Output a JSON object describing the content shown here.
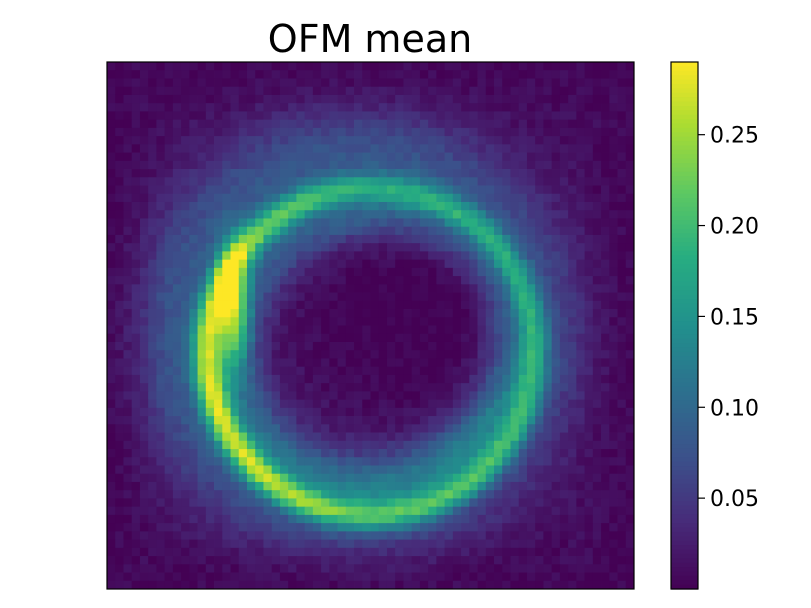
{
  "chart_data": {
    "type": "heatmap",
    "title": "OFM mean",
    "xlabel": "",
    "ylabel": "",
    "grid": false,
    "x_ticks": false,
    "y_ticks": false,
    "colormap": "viridis",
    "colorbar": {
      "vmin": 0.0,
      "vmax": 0.29,
      "ticks": [
        {
          "value": 0.05,
          "label": "0.05"
        },
        {
          "value": 0.1,
          "label": "0.10"
        },
        {
          "value": 0.15,
          "label": "0.15"
        },
        {
          "value": 0.2,
          "label": "0.20"
        },
        {
          "value": 0.25,
          "label": "0.25"
        }
      ]
    },
    "grid_size": [
      64,
      64
    ],
    "features": {
      "background_value": 0.01,
      "outer_halo": {
        "center": [
          0.47,
          0.52
        ],
        "radius": 0.42,
        "peak": 0.07
      },
      "ring": {
        "center": [
          0.5,
          0.55
        ],
        "radius": 0.31,
        "peak": 0.17
      },
      "bright_crescent": {
        "center": [
          0.24,
          0.47
        ],
        "peak": 0.29
      },
      "dark_core": {
        "center": [
          0.58,
          0.5
        ],
        "radius": 0.14,
        "value": 0.0
      }
    }
  }
}
